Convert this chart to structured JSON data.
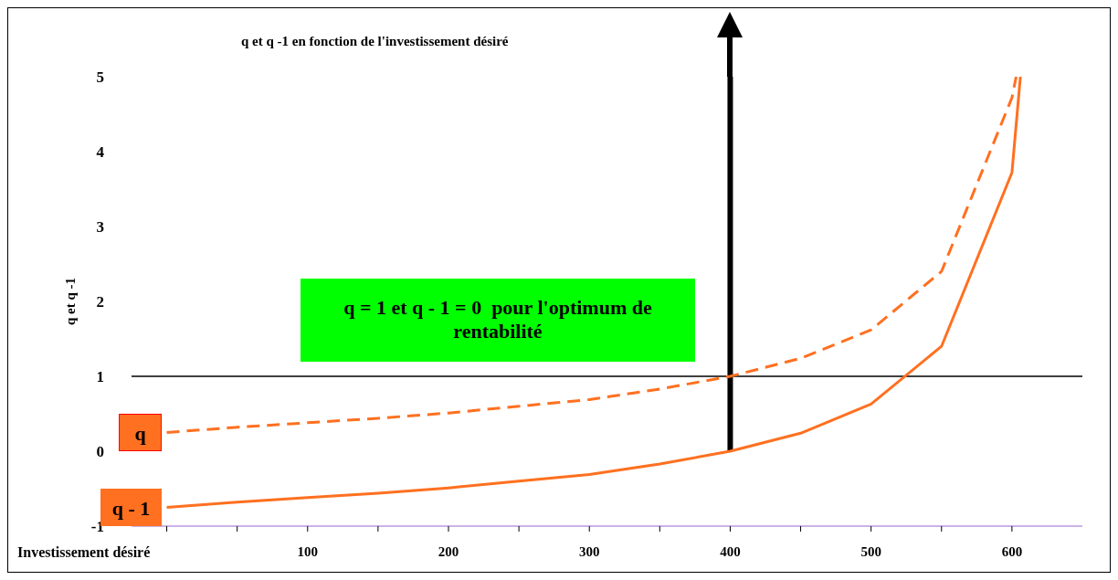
{
  "chart_data": {
    "type": "line",
    "title": "q et q -1 en fonction de l'investissement désiré",
    "xlabel": "Investissement désiré",
    "ylabel": "q et q -1",
    "annotations": [
      "q = 1 et q - 1 = 0  pour l'optimum de rentabilité"
    ],
    "series": [
      {
        "name": "q",
        "color": "#ff7020",
        "line_style": "dashed",
        "x": [
          0,
          50,
          100,
          150,
          200,
          250,
          300,
          350,
          400,
          450,
          500,
          550,
          600,
          603
        ],
        "values": [
          0.25,
          0.32,
          0.38,
          0.44,
          0.51,
          0.6,
          0.69,
          0.83,
          1.0,
          1.24,
          1.62,
          2.4,
          4.72,
          5
        ]
      },
      {
        "name": "q - 1",
        "color": "#ff7020",
        "line_style": "solid",
        "x": [
          0,
          50,
          100,
          150,
          200,
          250,
          300,
          350,
          400,
          450,
          500,
          550,
          600,
          606
        ],
        "values": [
          -0.75,
          -0.68,
          -0.62,
          -0.56,
          -0.49,
          -0.4,
          -0.31,
          -0.17,
          0,
          0.24,
          0.63,
          1.4,
          3.72,
          5
        ]
      }
    ],
    "xlim": [
      -25,
      650
    ],
    "xticks": [
      {
        "value": 0,
        "label": null
      },
      {
        "value": 50,
        "label": null
      },
      100,
      {
        "value": 150,
        "label": null
      },
      200,
      {
        "value": 250,
        "label": null
      },
      300,
      {
        "value": 350,
        "label": null
      },
      400,
      {
        "value": 450,
        "label": null
      },
      500,
      {
        "value": 550,
        "label": null
      },
      600
    ],
    "ylim": [
      -1,
      5
    ],
    "yticks": [
      -1,
      0,
      1,
      2,
      3,
      4,
      5
    ],
    "ref_lines": [
      {
        "axis": "y",
        "value": 1,
        "color": "#000000"
      },
      {
        "axis": "x",
        "value": 400,
        "color": "#000000"
      }
    ],
    "grid": false,
    "marker": "none"
  }
}
